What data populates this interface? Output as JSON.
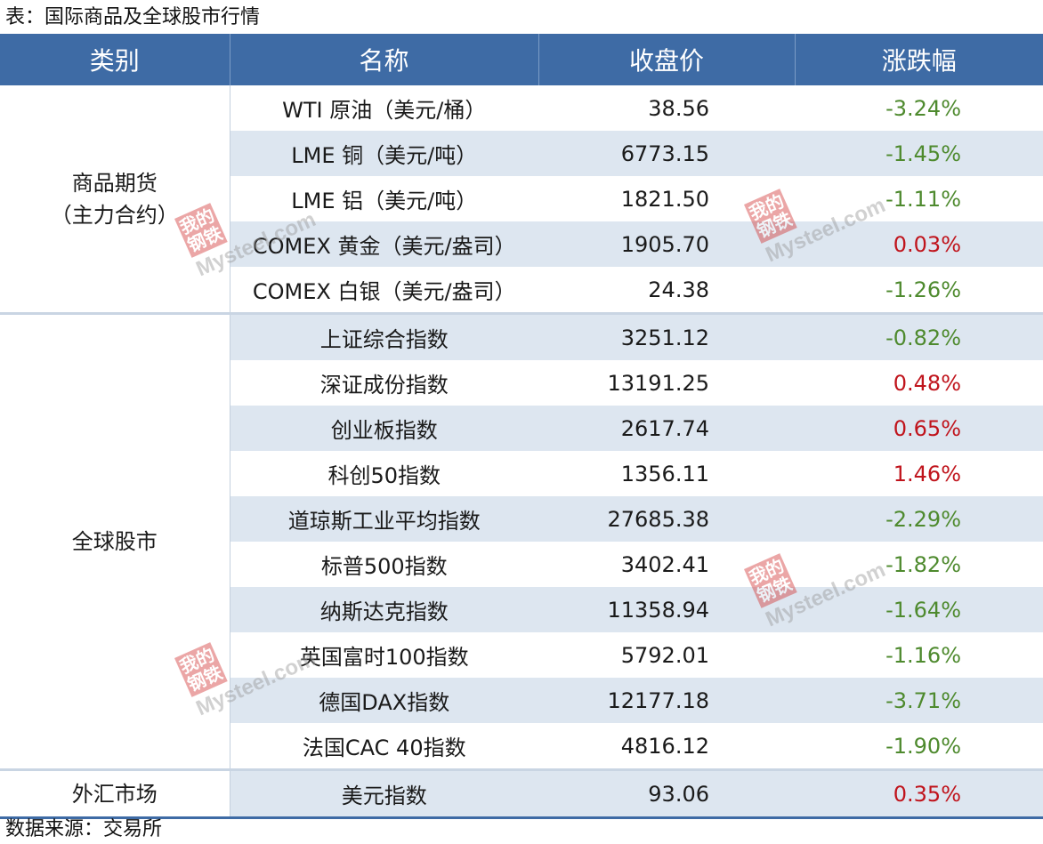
{
  "caption": "表：国际商品及全球股市行情",
  "source": "数据来源：交易所",
  "headers": [
    "类别",
    "名称",
    "收盘价",
    "涨跌幅"
  ],
  "colors": {
    "header_bg": "#3e6ba5",
    "row_alt": "#dde6f0",
    "up": "#c0141c",
    "down": "#4e8a2e"
  },
  "watermark": {
    "cn": "我的钢铁",
    "en": "Mysteel.com"
  },
  "groups": [
    {
      "category_lines": [
        "商品期货",
        "（主力合约）"
      ],
      "rows": [
        {
          "name": "WTI 原油（美元/桶）",
          "price": "38.56",
          "change": "-3.24%",
          "dir": "down"
        },
        {
          "name": "LME 铜（美元/吨）",
          "price": "6773.15",
          "change": "-1.45%",
          "dir": "down"
        },
        {
          "name": "LME 铝（美元/吨）",
          "price": "1821.50",
          "change": "-1.11%",
          "dir": "down"
        },
        {
          "name": "COMEX 黄金（美元/盎司）",
          "price": "1905.70",
          "change": "0.03%",
          "dir": "up"
        },
        {
          "name": "COMEX 白银（美元/盎司）",
          "price": "24.38",
          "change": "-1.26%",
          "dir": "down"
        }
      ]
    },
    {
      "category_lines": [
        "全球股市"
      ],
      "rows": [
        {
          "name": "上证综合指数",
          "price": "3251.12",
          "change": "-0.82%",
          "dir": "down"
        },
        {
          "name": "深证成份指数",
          "price": "13191.25",
          "change": "0.48%",
          "dir": "up"
        },
        {
          "name": "创业板指数",
          "price": "2617.74",
          "change": "0.65%",
          "dir": "up"
        },
        {
          "name": "科创50指数",
          "price": "1356.11",
          "change": "1.46%",
          "dir": "up"
        },
        {
          "name": "道琼斯工业平均指数",
          "price": "27685.38",
          "change": "-2.29%",
          "dir": "down"
        },
        {
          "name": "标普500指数",
          "price": "3402.41",
          "change": "-1.82%",
          "dir": "down"
        },
        {
          "name": "纳斯达克指数",
          "price": "11358.94",
          "change": "-1.64%",
          "dir": "down"
        },
        {
          "name": "英国富时100指数",
          "price": "5792.01",
          "change": "-1.16%",
          "dir": "down"
        },
        {
          "name": "德国DAX指数",
          "price": "12177.18",
          "change": "-3.71%",
          "dir": "down"
        },
        {
          "name": "法国CAC 40指数",
          "price": "4816.12",
          "change": "-1.90%",
          "dir": "down"
        }
      ]
    },
    {
      "category_lines": [
        "外汇市场"
      ],
      "rows": [
        {
          "name": "美元指数",
          "price": "93.06",
          "change": "0.35%",
          "dir": "up"
        }
      ]
    }
  ]
}
